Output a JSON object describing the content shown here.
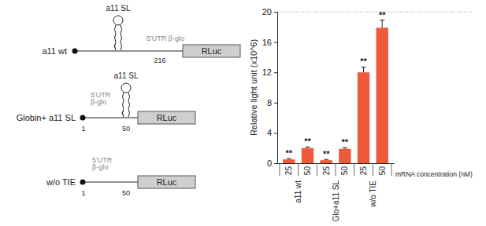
{
  "chart_data": {
    "type": "bar",
    "y_label": "Relative light unit (x10^6)",
    "x_label": "mRNA concentration (nM)",
    "categories": [
      "25",
      "50",
      "25",
      "50",
      "25",
      "50"
    ],
    "groups": [
      "a11 wt",
      "Glo+a11 SL",
      "w/o TIE"
    ],
    "values": [
      0.5,
      2.0,
      0.4,
      1.9,
      12.0,
      17.9
    ],
    "errors": [
      0.1,
      0.15,
      0.1,
      0.15,
      0.7,
      1.0
    ],
    "annotations": [
      "**",
      "**",
      "**",
      "**",
      "**",
      "**"
    ],
    "color": "#f05a3c",
    "ylim": [
      0,
      20
    ],
    "yticks": [
      0,
      4,
      8,
      12,
      16,
      20
    ]
  },
  "diagram": {
    "constructs": [
      {
        "name": "a11 wt",
        "stem_loop": "a11 SL",
        "utr": "5'UTR β-glo",
        "positions": [
          216
        ],
        "reporter": "RLuc"
      },
      {
        "name": "Globin+ a11 SL",
        "stem_loop": "a11 SL",
        "utr": "5'UTR β-glo",
        "positions": [
          1,
          50
        ],
        "reporter": "RLuc"
      },
      {
        "name": "w/o TIE",
        "utr": "5'UTR β-glo",
        "positions": [
          1,
          50
        ],
        "reporter": "RLuc"
      }
    ]
  }
}
